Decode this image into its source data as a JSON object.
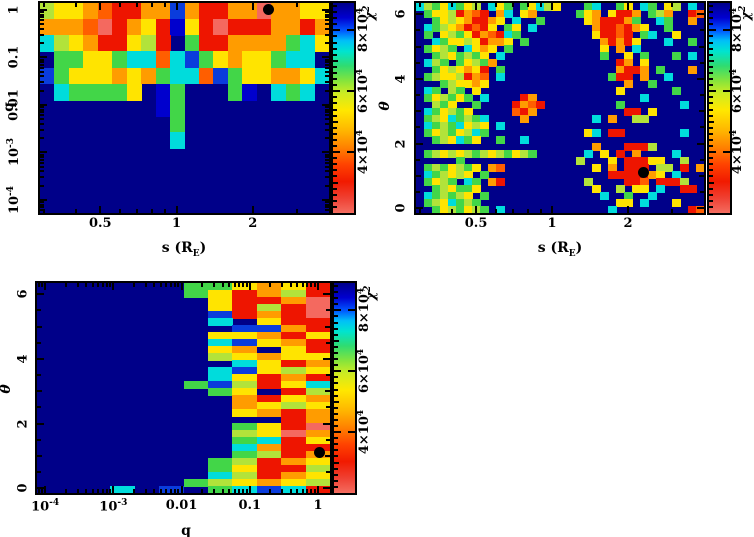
{
  "figure": {
    "background": "#ffffff",
    "marker_color": "#000000",
    "frame_color": "#000000"
  },
  "palette": {
    "N": "#000089",
    "D": "#0000cd",
    "B": "#0a3cdc",
    "b": "#00a2ff",
    "c": "#00dcdc",
    "g": "#42d648",
    "G": "#b2e33a",
    "y": "#ffe400",
    "o": "#ff9c00",
    "O": "#ff5e00",
    "r": "#ee1500",
    "s": "#f4695f"
  },
  "colorbar": {
    "label": {
      "main": "χ",
      "sup": "2"
    },
    "range": [
      20000,
      89000
    ],
    "ticks": [
      {
        "t": "8×10",
        "sup": "4",
        "v": 80000
      },
      {
        "t": "6×10",
        "sup": "4",
        "v": 60000
      },
      {
        "t": "4×10",
        "sup": "4",
        "v": 40000
      }
    ],
    "gradient": [
      [
        "#00008b",
        "0%"
      ],
      [
        "#0000d0",
        "7%"
      ],
      [
        "#0055ff",
        "13%"
      ],
      [
        "#00c0f8",
        "18%"
      ],
      [
        "#00e4cf",
        "23%"
      ],
      [
        "#30dc70",
        "30%"
      ],
      [
        "#85e43c",
        "37%"
      ],
      [
        "#cdeb22",
        "43%"
      ],
      [
        "#ffe800",
        "51%"
      ],
      [
        "#ffb400",
        "61%"
      ],
      [
        "#ff8000",
        "69%"
      ],
      [
        "#ff4200",
        "77%"
      ],
      [
        "#f11a00",
        "85%"
      ],
      [
        "#ef4133",
        "93%"
      ],
      [
        "#f46d60",
        "100%"
      ]
    ]
  },
  "chart_data": [
    {
      "type": "heatmap",
      "name": "chi2-map-q-vs-s",
      "xlabel": {
        "main": "s (R",
        "sub": "E",
        "post": ")"
      },
      "ylabel": {
        "main": "q",
        "italic": false
      },
      "xaxis": {
        "scale": "log",
        "range": [
          0.289,
          4.0
        ],
        "ticks": [
          {
            "t": "0.5",
            "v": 0.5
          },
          {
            "t": "1",
            "v": 1
          },
          {
            "t": "2",
            "v": 2
          }
        ]
      },
      "yaxis": {
        "scale": "log",
        "range": [
          5.3e-05,
          1.4
        ],
        "ticks": [
          {
            "t": "1",
            "v": 1
          },
          {
            "t": "0.1",
            "v": 0.1
          },
          {
            "t": "0.01",
            "v": 0.01
          },
          {
            "t": "10",
            "sup": "-3",
            "v": 0.001
          },
          {
            "t": "10",
            "sup": "-4",
            "v": 0.0001
          }
        ]
      },
      "marker": {
        "x": 2.3,
        "y": 1.0,
        "symbol": "filled-circle"
      },
      "grid": [
        "GyyoOrrooBorroosooyy",
        "oooOsroyrDyrsrrrooro",
        "cGyorryGrNgrroooogcy",
        "NggyygccOcBgyoyygccN",
        "BgyyyoyogccOBgyyooyc",
        "NcggggyNDgNNNgDNcgcN",
        "NNNNNNNNDgNNNNNNNNNN",
        "NNNNNNNNNgNNNNNNNNNN",
        "NNNNNNNNNcNNNNNNNNNN",
        "NNNNNNNNNNNNNNNNNNNN",
        "NNNNNNNNNNNNNNNNNNNN",
        "NNNNNNNNNNNNNNNNNNNN",
        "NNNNNNNNNNNNNNNNNNNN"
      ]
    },
    {
      "type": "heatmap",
      "name": "chi2-map-theta-vs-s",
      "xlabel": {
        "main": "s (R",
        "sub": "E",
        "post": ")"
      },
      "ylabel": {
        "main": "θ",
        "italic": true
      },
      "xaxis": {
        "scale": "log",
        "range": [
          0.289,
          4.0
        ],
        "ticks": [
          {
            "t": "0.5",
            "v": 0.5
          },
          {
            "t": "1",
            "v": 1
          },
          {
            "t": "2",
            "v": 2
          }
        ]
      },
      "yaxis": {
        "scale": "linear",
        "range": [
          -0.15,
          6.35
        ],
        "ticks": [
          {
            "t": "6",
            "v": 6
          },
          {
            "t": "4",
            "v": 4
          },
          {
            "t": "2",
            "v": 2
          },
          {
            "t": "0",
            "v": 0
          }
        ]
      },
      "marker": {
        "x": 2.3,
        "y": 1.1,
        "symbol": "filled-circle"
      },
      "grid": [
        "cGgycgyGNcygNgycGyNNNgcNNgyNcgNyGNcN",
        "NgyyGroOrNocNyoNNNNNgyoNyrroNgGoNNrO",
        "NNgyGyorroyNcNNgNNNNNyorrrogNNcgNNoN",
        "NcgGyorOryNgyNcNNNNNNNorrOroyNNgNNNN",
        "NgNyGgyroOrcgNNNNNNNNNyrrOrNgcNNyNNN",
        "NNcgyyGyrooyNgNNNNNNNNNororyNNNcNNgN",
        "NgyGgNcyoyNgNNNNNNNNNNNyNoNcNNNNNNNN",
        "NNgGygGgyNcNNNNNNNNNNNNgNNyNgNNNgNcN",
        "NcGgNgyGgoNNNNNNNNNNNNNNNroNyNNNNNNN",
        "NNgyGyoyrNgNNNNNNNNNNNNNNorroNgNNNoN",
        "NgGyyGroONcNNNNNNNNNNNNNgrrNoNNcNNNN",
        "NNNgGyyoyNNNNNNNNNNNNNNNNNoNNgNNNNNN",
        "NcgNGgNyNNNNNNNNNNNNNNNNNyNNNNNNgNNN",
        "NgyGgygNcNNNNroNNNNNNNNNNNNNcNNNNNNN",
        "NNGgyNNgNNNNroOrNNNNNNNNNgNNNNNNNcNN",
        "NcgyGgyNNNNNOroNNNNNNNNNNNrrNyNNNNNN",
        "NgGycgGgcNNNNoNNNNNNNNcNoNNGGNNNNNNN",
        "NcgGgcyGyNcNNNNNNNNNNNNNNNNNNNNNNNNN",
        "NgyGgyGcgNNNNNNNNNNNNycNrrNNNNNNNcNN",
        "NNgGycgyNNgNNcNNNNNNNNNNNNNNNNNNNNNN",
        "NNNNNNNNNNNNNNNNNNNNNNoNNNrrrGNNNNNN",
        "NgGyGyGgGyGgyGgNNNNNNcNyNrNoNNNNcNNN",
        "NNNNNgNNNNNNNNNNNNNNGNNNyNrrryyNNGNN",
        "NgGgyGgyNoONNNNNNNNNNNyNoNrrrNGGNrNo",
        "NcgGyGyNgNNNNNNNNNNNNNNNrrrrroyNcNNN",
        "NgyGgNcgNorNNNNNNNNNNGNNNNrrONrrrGNN",
        "NNgGyggyNNNNNNNNNNNNNNyNNGNyyNcNNrrN",
        "NcgGgGyNgNNNNNNNNNNNNNNcNNgNNcNNNNNN",
        "NgGycgGgNNNNNNNNNNNNNNNNNyyNcNNNyNNN",
        "NNgyGgyGgNcNNNNNNNNNNNNNcNNNNNNNNNrO"
      ]
    },
    {
      "type": "heatmap",
      "name": "chi2-map-theta-vs-q",
      "xlabel": {
        "main": "q"
      },
      "ylabel": {
        "main": "θ",
        "italic": true
      },
      "xaxis": {
        "scale": "log",
        "range": [
          7.6e-05,
          1.5
        ],
        "ticks": [
          {
            "t": "10",
            "sup": "-4",
            "v": 0.0001
          },
          {
            "t": "10",
            "sup": "-3",
            "v": 0.001
          },
          {
            "t": "0.01",
            "v": 0.01
          },
          {
            "t": "0.1",
            "v": 0.1
          },
          {
            "t": "1",
            "v": 1
          }
        ]
      },
      "yaxis": {
        "scale": "linear",
        "range": [
          -0.15,
          6.35
        ],
        "ticks": [
          {
            "t": "6",
            "v": 6
          },
          {
            "t": "4",
            "v": 4
          },
          {
            "t": "2",
            "v": 2
          },
          {
            "t": "0",
            "v": 0
          }
        ]
      },
      "marker": {
        "x": 1.05,
        "y": 1.1,
        "symbol": "filled-circle"
      },
      "grid": [
        "NNNNNNggyoyr",
        "NNNNNNgyroGr",
        "NNNNNNNyrros",
        "NNNNNNNyrGrs",
        "NNNNNNNBrors",
        "NNNNNNNcNyrr",
        "NNNNNNNNBBor",
        "NNNNNNNyyory",
        "NNNNNNNcByor",
        "NNNNNNNyoNyr",
        "NNNNNNNGyoyy",
        "NNNNNNNNcyro",
        "NNNNNNNcByGy",
        "NNNNNNNcyror",
        "NNNNNNgBGryc",
        "NNNNNNNgyNrG",
        "NNNNNNNNoryo",
        "NNNNNNNNoyGy",
        "NNNNNNNNyoro",
        "NNNNNNNNNNro",
        "NNNNNNNNgyrs",
        "NNNNNNNNGyso",
        "NNNNNNNNgcry",
        "NNNNNNNNcorr",
        "NNNNNNNNgGro",
        "NNNNNNNgGroy",
        "NNNNNNNgyrrG",
        "NNNNNNNcGroy",
        "NNNNNNgGyoyG",
        "NNNcNBNgcBcr"
      ]
    }
  ]
}
